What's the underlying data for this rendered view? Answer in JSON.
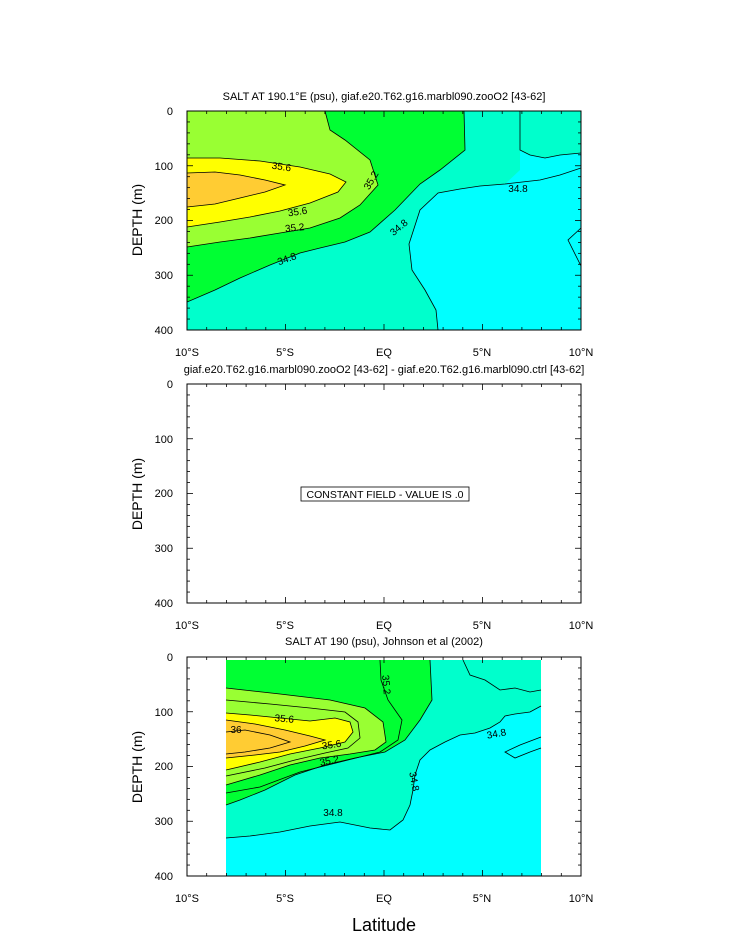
{
  "chart_data": [
    {
      "type": "heatmap",
      "title": "SALT AT 190.1°E (psu), giaf.e20.T62.g16.marbl090.zooO2 [43-62]",
      "ylabel": "DEPTH (m)",
      "xlabel": "",
      "x_ticks": [
        "10°S",
        "5°S",
        "EQ",
        "5°N",
        "10°N"
      ],
      "y_ticks": [
        "0",
        "100",
        "200",
        "300",
        "400"
      ],
      "xlim": [
        -10,
        10
      ],
      "ylim": [
        400,
        0
      ],
      "contour_labels": [
        "35.6",
        "35.6",
        "35.2",
        "35.2",
        "34.8",
        "34.8",
        "34.8"
      ],
      "fill_colors": [
        "#00ffff",
        "#00ffcc",
        "#00ff33",
        "#99ff33",
        "#ffff00",
        "#ffcc33"
      ]
    },
    {
      "type": "heatmap",
      "title": "giaf.e20.T62.g16.marbl090.zooO2 [43-62] - giaf.e20.T62.g16.marbl090.ctrl [43-62]",
      "ylabel": "DEPTH (m)",
      "xlabel": "",
      "x_ticks": [
        "10°S",
        "5°S",
        "EQ",
        "5°N",
        "10°N"
      ],
      "y_ticks": [
        "0",
        "100",
        "200",
        "300",
        "400"
      ],
      "xlim": [
        -10,
        10
      ],
      "ylim": [
        400,
        0
      ],
      "annotation": "CONSTANT FIELD - VALUE IS .0"
    },
    {
      "type": "heatmap",
      "title": "SALT AT 190 (psu), Johnson et al (2002)",
      "ylabel": "DEPTH (m)",
      "xlabel": "Latitude",
      "x_ticks": [
        "10°S",
        "5°S",
        "EQ",
        "5°N",
        "10°N"
      ],
      "y_ticks": [
        "0",
        "100",
        "200",
        "300",
        "400"
      ],
      "xlim": [
        -10,
        10
      ],
      "ylim": [
        400,
        0
      ],
      "data_xlim": [
        -8,
        8
      ],
      "contour_labels": [
        "36",
        "35.6",
        "35.6",
        "35.2",
        "35.2",
        "34.8",
        "34.8",
        "34.8"
      ],
      "fill_colors": [
        "#00ffff",
        "#00ffcc",
        "#00ff33",
        "#99ff33",
        "#ffff00",
        "#ffcc33"
      ]
    }
  ]
}
